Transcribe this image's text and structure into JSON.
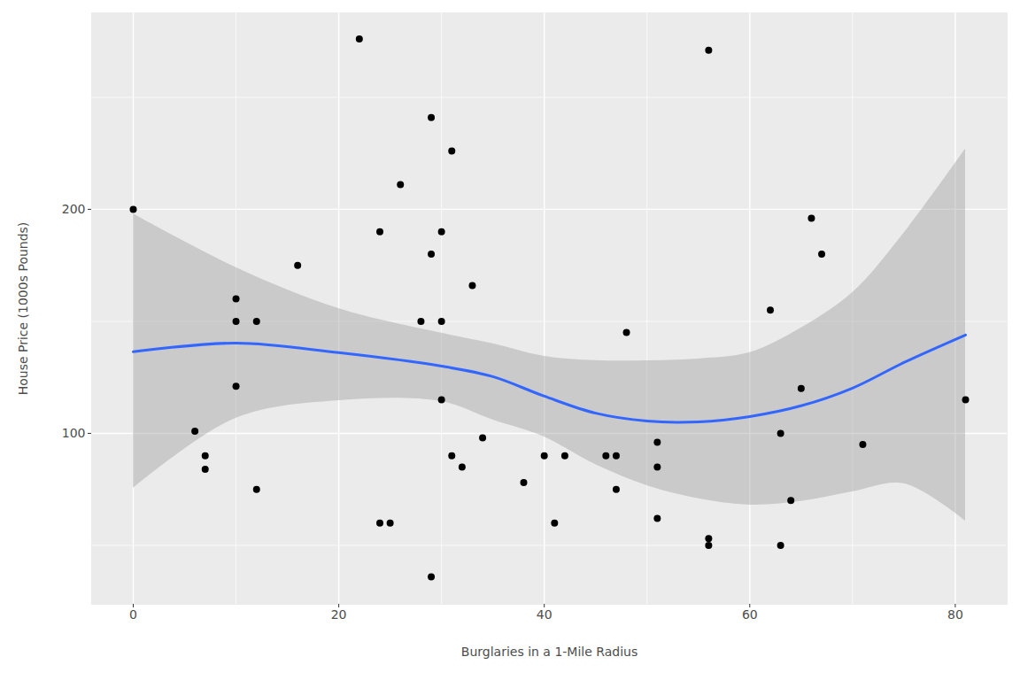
{
  "chart_data": {
    "type": "scatter",
    "x_label": "Burglaries in a 1-Mile Radius",
    "y_label": "House Price (1000s Pounds)",
    "x": [
      0,
      6,
      7,
      7,
      10,
      10,
      10,
      12,
      12,
      16,
      22,
      24,
      24,
      25,
      26,
      28,
      29,
      29,
      29,
      30,
      30,
      30,
      31,
      31,
      32,
      33,
      34,
      38,
      40,
      41,
      42,
      46,
      47,
      47,
      48,
      51,
      51,
      51,
      56,
      56,
      56,
      62,
      63,
      63,
      64,
      65,
      66,
      67,
      71,
      81
    ],
    "values": [
      200,
      101,
      90,
      84,
      160,
      150,
      121,
      150,
      75,
      175,
      276,
      190,
      60,
      60,
      211,
      150,
      241,
      180,
      36,
      190,
      150,
      115,
      226,
      90,
      85,
      166,
      98,
      78,
      90,
      60,
      90,
      90,
      90,
      75,
      145,
      96,
      85,
      62,
      271,
      53,
      50,
      155,
      50,
      100,
      70,
      120,
      196,
      180,
      95,
      115
    ],
    "color": "#000000",
    "marker": "circle",
    "smooth": {
      "x": [
        0,
        10,
        20,
        30,
        35,
        40,
        45,
        50,
        55,
        60,
        65,
        70,
        75,
        81
      ],
      "values": [
        136.4,
        140.3,
        136,
        130,
        125.3,
        116.6,
        109,
        105.5,
        105.1,
        107.5,
        112.3,
        120.2,
        131.6,
        143.9
      ],
      "lower": [
        75.5,
        106.7,
        114.6,
        114.2,
        106,
        98.4,
        86,
        76.7,
        70.8,
        68,
        69.6,
        73.9,
        77.5,
        60.8
      ],
      "upper": [
        198,
        174,
        155.7,
        144.7,
        140,
        134.4,
        132.5,
        132.4,
        133.2,
        136,
        147,
        162.8,
        189.3,
        226.9
      ],
      "color": "#3366FF"
    },
    "xlim": [
      -4.05,
      85.05
    ],
    "ylim": [
      23.7,
      287.7
    ],
    "xticks": [
      0,
      20,
      40,
      60,
      80
    ],
    "yticks": [
      100,
      200
    ],
    "grid": true
  }
}
